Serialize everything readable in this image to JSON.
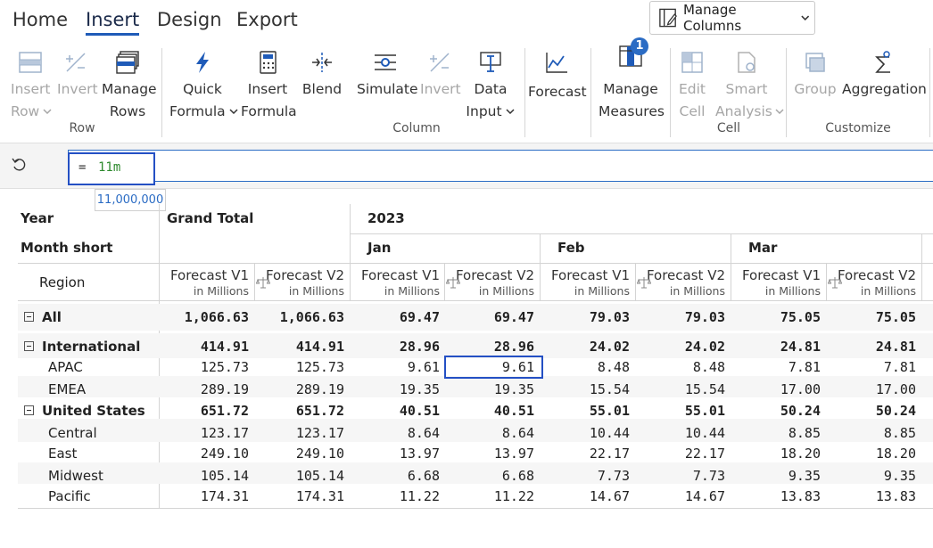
{
  "tabs": [
    "Home",
    "Insert",
    "Design",
    "Export"
  ],
  "active_tab": "Insert",
  "manage_columns": {
    "label": "Manage Columns",
    "icon": "manage-columns-icon"
  },
  "ribbon": {
    "groups": {
      "row": "Row",
      "column": "Column",
      "cell": "Cell",
      "customize": "Customize"
    },
    "buttons": {
      "insert_row": [
        "Insert",
        "Row"
      ],
      "invert_row": [
        "Invert",
        ""
      ],
      "manage_rows": [
        "Manage",
        "Rows"
      ],
      "quick_formula": [
        "Quick",
        "Formula"
      ],
      "insert_formula": [
        "Insert",
        "Formula"
      ],
      "blend": [
        "Blend",
        ""
      ],
      "simulate": [
        "Simulate",
        ""
      ],
      "invert_col": [
        "Invert",
        ""
      ],
      "data_input": [
        "Data",
        "Input"
      ],
      "forecast": [
        "Forecast",
        ""
      ],
      "manage_measures": [
        "Manage",
        "Measures"
      ],
      "edit_cell": [
        "Edit",
        "Cell"
      ],
      "smart_analysis": [
        "Smart",
        "Analysis"
      ],
      "group": [
        "Group",
        ""
      ],
      "aggregation": [
        "Aggregation",
        ""
      ]
    },
    "manage_measures_badge": "1",
    "accent": "#1f5bb8"
  },
  "formula_bar": {
    "equals": "=",
    "value": "11m",
    "tooltip": "11,000,000"
  },
  "grid": {
    "year_label": "Year",
    "month_label": "Month short",
    "region_label": "Region",
    "grand_total": "Grand Total",
    "year": "2023",
    "months": [
      "Jan",
      "Feb",
      "Mar"
    ],
    "measure_v1": "Forecast V1",
    "measure_v2": "Forecast V2",
    "unit": "in Millions",
    "rows": [
      {
        "label": "All",
        "bold": true,
        "toggle": true,
        "indent": 0,
        "values": [
          "1,066.63",
          "1,066.63",
          "69.47",
          "69.47",
          "79.03",
          "79.03",
          "75.05",
          "75.05"
        ]
      },
      {
        "label": "International",
        "bold": true,
        "toggle": true,
        "indent": 0,
        "values": [
          "414.91",
          "414.91",
          "28.96",
          "28.96",
          "24.02",
          "24.02",
          "24.81",
          "24.81"
        ]
      },
      {
        "label": "APAC",
        "bold": false,
        "toggle": false,
        "indent": 1,
        "values": [
          "125.73",
          "125.73",
          "9.61",
          "9.61",
          "8.48",
          "8.48",
          "7.81",
          "7.81"
        ]
      },
      {
        "label": "EMEA",
        "bold": false,
        "toggle": false,
        "indent": 1,
        "values": [
          "289.19",
          "289.19",
          "19.35",
          "19.35",
          "15.54",
          "15.54",
          "17.00",
          "17.00"
        ]
      },
      {
        "label": "United States",
        "bold": true,
        "toggle": true,
        "indent": 0,
        "values": [
          "651.72",
          "651.72",
          "40.51",
          "40.51",
          "55.01",
          "55.01",
          "50.24",
          "50.24"
        ]
      },
      {
        "label": "Central",
        "bold": false,
        "toggle": false,
        "indent": 1,
        "values": [
          "123.17",
          "123.17",
          "8.64",
          "8.64",
          "10.44",
          "10.44",
          "8.85",
          "8.85"
        ]
      },
      {
        "label": "East",
        "bold": false,
        "toggle": false,
        "indent": 1,
        "values": [
          "249.10",
          "249.10",
          "13.97",
          "13.97",
          "22.17",
          "22.17",
          "18.20",
          "18.20"
        ]
      },
      {
        "label": "Midwest",
        "bold": false,
        "toggle": false,
        "indent": 1,
        "values": [
          "105.14",
          "105.14",
          "6.68",
          "6.68",
          "7.73",
          "7.73",
          "9.35",
          "9.35"
        ]
      },
      {
        "label": "Pacific",
        "bold": false,
        "toggle": false,
        "indent": 1,
        "values": [
          "174.31",
          "174.31",
          "11.22",
          "11.22",
          "14.67",
          "14.67",
          "13.83",
          "13.83"
        ]
      }
    ],
    "selected_cell": {
      "row": 2,
      "col": 3
    }
  }
}
